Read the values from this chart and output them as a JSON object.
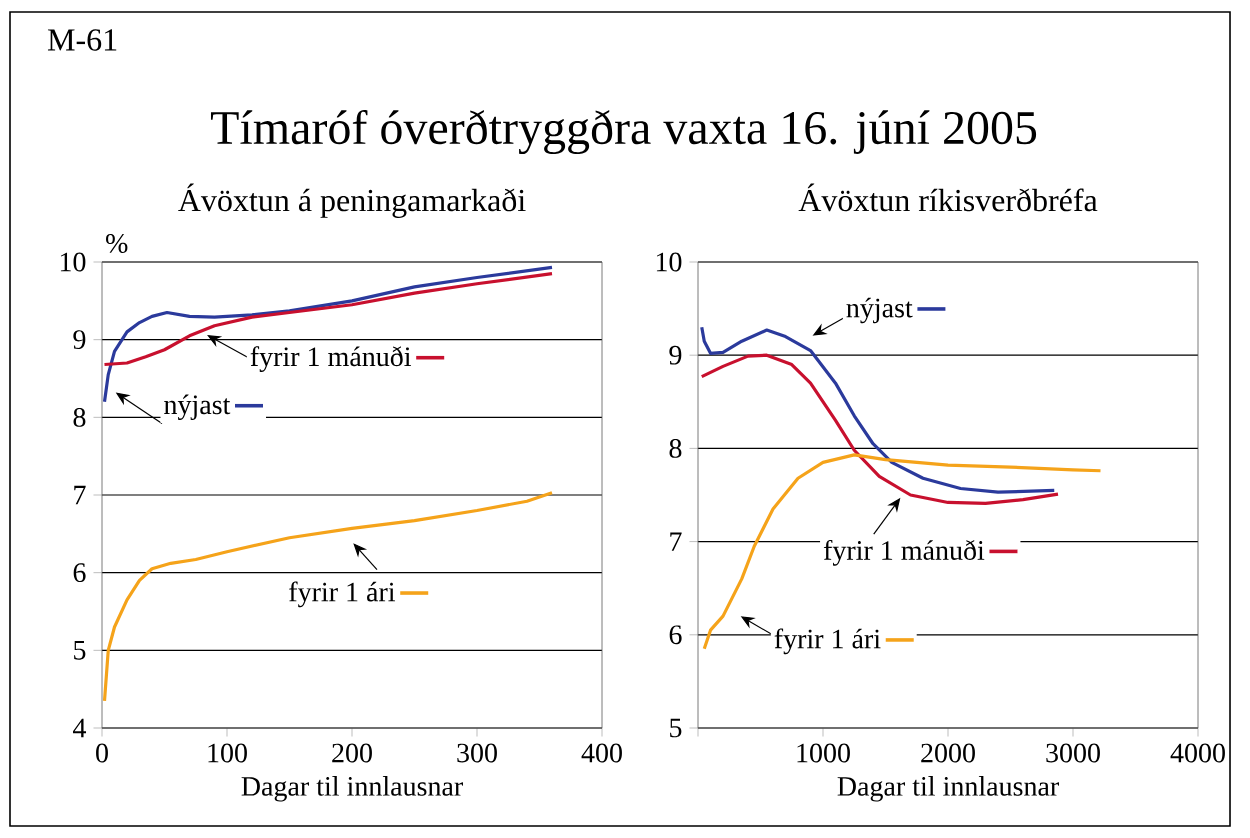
{
  "chart_data": [
    {
      "type": "line",
      "title": "Ávöxtun á peningamarkaði",
      "xlabel": "Dagar til innlausnar",
      "ylabel": "%",
      "annotations": [
        "M-61",
        "Tímaróf óverðtryggðra vaxta 16. júní 2005"
      ],
      "xlim": [
        0,
        400
      ],
      "ylim": [
        4,
        10
      ],
      "xticks": [
        0,
        100,
        200,
        300,
        400
      ],
      "yticks": [
        4,
        5,
        6,
        7,
        8,
        9,
        10
      ],
      "grid": "y",
      "legend": "center",
      "series": [
        {
          "name": "nýjast",
          "color": "#2b3a9c",
          "x": [
            2,
            5,
            10,
            20,
            30,
            40,
            52,
            70,
            90,
            120,
            150,
            200,
            250,
            300,
            360
          ],
          "values": [
            8.2,
            8.55,
            8.85,
            9.1,
            9.22,
            9.3,
            9.35,
            9.3,
            9.29,
            9.32,
            9.37,
            9.5,
            9.68,
            9.8,
            9.93
          ]
        },
        {
          "name": "fyrir 1 mánuði",
          "color": "#c8102e",
          "x": [
            2,
            20,
            35,
            50,
            70,
            90,
            120,
            150,
            200,
            250,
            300,
            360
          ],
          "values": [
            8.68,
            8.7,
            8.78,
            8.87,
            9.05,
            9.18,
            9.29,
            9.35,
            9.45,
            9.6,
            9.72,
            9.85
          ]
        },
        {
          "name": "fyrir 1 ári",
          "color": "#f5a31a",
          "x": [
            2,
            5,
            10,
            20,
            30,
            40,
            55,
            75,
            100,
            150,
            200,
            250,
            300,
            340,
            360
          ],
          "values": [
            4.35,
            5.0,
            5.3,
            5.65,
            5.9,
            6.05,
            6.12,
            6.17,
            6.27,
            6.45,
            6.57,
            6.67,
            6.8,
            6.92,
            7.03
          ]
        }
      ]
    },
    {
      "type": "line",
      "title": "Ávöxtun ríkisverðbréfa",
      "xlabel": "Dagar til innlausnar",
      "xlim": [
        0,
        4000
      ],
      "ylim": [
        5,
        10
      ],
      "xticks": [
        {
          "value": 0,
          "label": null
        },
        1000,
        2000,
        3000,
        4000
      ],
      "yticks": [
        5,
        6,
        7,
        8,
        9,
        10
      ],
      "grid": "y",
      "legend": "center",
      "series": [
        {
          "name": "nýjast",
          "color": "#2b3a9c",
          "x": [
            30,
            50,
            100,
            200,
            350,
            550,
            700,
            900,
            1100,
            1250,
            1400,
            1550,
            1800,
            2100,
            2400,
            2850
          ],
          "values": [
            9.3,
            9.15,
            9.02,
            9.03,
            9.15,
            9.27,
            9.2,
            9.05,
            8.7,
            8.35,
            8.05,
            7.85,
            7.68,
            7.57,
            7.53,
            7.55
          ]
        },
        {
          "name": "fyrir 1 mánuði",
          "color": "#c8102e",
          "x": [
            30,
            200,
            400,
            550,
            750,
            900,
            1100,
            1250,
            1450,
            1700,
            2000,
            2300,
            2600,
            2880
          ],
          "values": [
            8.77,
            8.88,
            8.99,
            9.0,
            8.9,
            8.7,
            8.3,
            7.98,
            7.7,
            7.5,
            7.42,
            7.41,
            7.45,
            7.51
          ]
        },
        {
          "name": "fyrir 1 ári",
          "color": "#f5a31a",
          "x": [
            50,
            100,
            200,
            350,
            450,
            600,
            800,
            1000,
            1250,
            1500,
            2000,
            2500,
            3000,
            3220
          ],
          "values": [
            5.85,
            6.05,
            6.2,
            6.6,
            6.95,
            7.35,
            7.68,
            7.85,
            7.93,
            7.88,
            7.82,
            7.8,
            7.77,
            7.76
          ]
        }
      ]
    }
  ]
}
